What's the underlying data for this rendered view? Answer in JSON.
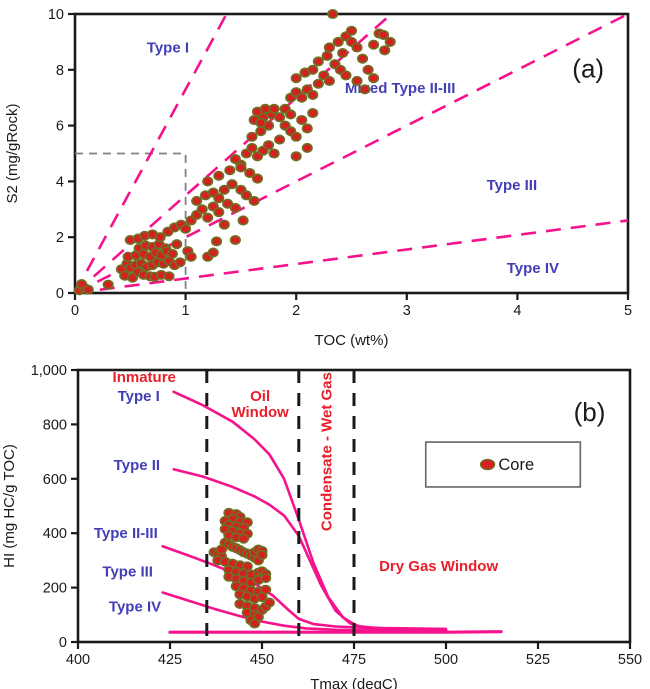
{
  "colors": {
    "pink": "#F5128C",
    "point_fill": "#D42020",
    "point_stroke": "#6F6F23",
    "blue": "#4340B5",
    "red": "#E8202B",
    "black": "#1A1A1A",
    "gray_dash": "#808080",
    "legend_border": "#666666"
  },
  "chart_data": [
    {
      "id": "a",
      "type": "scatter",
      "corner_label": "(a)",
      "xlabel": "TOC (wt%)",
      "ylabel": "S2 (mg/gRock)",
      "xlim": [
        0,
        5
      ],
      "ylim": [
        0,
        10
      ],
      "xticks": [
        0,
        1,
        2,
        3,
        4,
        5
      ],
      "xtick_labels": [
        "0",
        "1",
        "2",
        "3",
        "4",
        "5"
      ],
      "yticks": [
        0,
        2,
        4,
        6,
        8,
        10
      ],
      "ytick_labels": [
        "0",
        "2",
        "4",
        "6",
        "8",
        "10"
      ],
      "grid": false,
      "boundary_lines": [
        {
          "name": "type-1-boundary",
          "from": [
            0,
            0
          ],
          "to": [
            1.37,
            10
          ]
        },
        {
          "name": "type-2-boundary",
          "from": [
            0,
            0
          ],
          "to": [
            2.86,
            10
          ]
        },
        {
          "name": "type-3-boundary",
          "from": [
            0,
            0
          ],
          "to": [
            5,
            10
          ]
        },
        {
          "name": "type-4-boundary",
          "from": [
            0,
            0
          ],
          "to": [
            5,
            2.6
          ]
        }
      ],
      "ref_box": {
        "x": 1,
        "y": 5
      },
      "labels": [
        {
          "text": "Type I",
          "x": 0.84,
          "y": 8.8,
          "color": "blue",
          "bold": true
        },
        {
          "text": "Mixed Type II-III",
          "x": 2.94,
          "y": 7.35,
          "color": "blue",
          "bold": true
        },
        {
          "text": "Type III",
          "x": 3.95,
          "y": 3.87,
          "color": "blue",
          "bold": true
        },
        {
          "text": "Type IV",
          "x": 4.14,
          "y": 0.9,
          "color": "blue",
          "bold": true
        },
        {
          "text": "(a)",
          "x": 4.64,
          "y": 7.9,
          "color": "black",
          "size": 26
        }
      ],
      "points": [
        [
          0.04,
          0.1
        ],
        [
          0.08,
          0.2
        ],
        [
          0.12,
          0.12
        ],
        [
          0.06,
          0.32
        ],
        [
          0.3,
          0.3
        ],
        [
          0.42,
          0.85
        ],
        [
          0.45,
          0.62
        ],
        [
          0.47,
          1.05
        ],
        [
          0.48,
          1.3
        ],
        [
          0.5,
          0.9
        ],
        [
          0.5,
          1.9
        ],
        [
          0.52,
          0.55
        ],
        [
          0.55,
          1.0
        ],
        [
          0.55,
          1.35
        ],
        [
          0.57,
          0.75
        ],
        [
          0.57,
          1.95
        ],
        [
          0.58,
          1.6
        ],
        [
          0.6,
          1.05
        ],
        [
          0.62,
          0.65
        ],
        [
          0.62,
          1.4
        ],
        [
          0.63,
          2.05
        ],
        [
          0.64,
          1.7
        ],
        [
          0.65,
          0.95
        ],
        [
          0.68,
          0.6
        ],
        [
          0.68,
          1.3
        ],
        [
          0.7,
          1.0
        ],
        [
          0.7,
          1.65
        ],
        [
          0.7,
          2.1
        ],
        [
          0.72,
          0.58
        ],
        [
          0.73,
          1.45
        ],
        [
          0.75,
          1.1
        ],
        [
          0.76,
          1.75
        ],
        [
          0.77,
          2.0
        ],
        [
          0.78,
          0.65
        ],
        [
          0.78,
          1.35
        ],
        [
          0.8,
          1.05
        ],
        [
          0.82,
          1.6
        ],
        [
          0.83,
          1.5
        ],
        [
          0.84,
          2.2
        ],
        [
          0.85,
          0.6
        ],
        [
          0.85,
          1.15
        ],
        [
          0.88,
          1.4
        ],
        [
          0.9,
          1.0
        ],
        [
          0.9,
          2.35
        ],
        [
          0.92,
          1.75
        ],
        [
          0.95,
          1.1
        ],
        [
          0.96,
          2.45
        ],
        [
          1.0,
          2.3
        ],
        [
          1.02,
          1.5
        ],
        [
          1.05,
          1.3
        ],
        [
          1.05,
          2.6
        ],
        [
          1.1,
          2.8
        ],
        [
          1.15,
          3.0
        ],
        [
          1.2,
          2.7
        ],
        [
          1.25,
          3.1
        ],
        [
          1.3,
          2.9
        ],
        [
          1.1,
          3.3
        ],
        [
          1.18,
          3.5
        ],
        [
          1.25,
          3.6
        ],
        [
          1.3,
          3.4
        ],
        [
          1.38,
          3.2
        ],
        [
          1.45,
          3.05
        ],
        [
          1.35,
          3.7
        ],
        [
          1.42,
          3.9
        ],
        [
          1.5,
          3.7
        ],
        [
          1.55,
          3.5
        ],
        [
          1.62,
          3.3
        ],
        [
          1.2,
          4.0
        ],
        [
          1.3,
          4.2
        ],
        [
          1.4,
          4.4
        ],
        [
          1.5,
          4.6
        ],
        [
          1.58,
          4.3
        ],
        [
          1.65,
          4.1
        ],
        [
          1.35,
          2.45
        ],
        [
          1.52,
          2.6
        ],
        [
          1.28,
          1.85
        ],
        [
          1.45,
          1.9
        ],
        [
          1.2,
          1.3
        ],
        [
          1.25,
          1.45
        ],
        [
          1.45,
          4.8
        ],
        [
          1.5,
          4.5
        ],
        [
          1.55,
          5.0
        ],
        [
          1.6,
          5.2
        ],
        [
          1.65,
          4.9
        ],
        [
          1.7,
          5.1
        ],
        [
          1.75,
          5.3
        ],
        [
          1.8,
          5.0
        ],
        [
          1.6,
          5.6
        ],
        [
          1.68,
          5.8
        ],
        [
          1.75,
          6.0
        ],
        [
          1.62,
          6.2
        ],
        [
          1.7,
          6.3
        ],
        [
          1.78,
          6.4
        ],
        [
          1.65,
          6.5
        ],
        [
          1.72,
          6.6
        ],
        [
          1.8,
          6.6
        ],
        [
          1.68,
          6.1
        ],
        [
          1.85,
          6.3
        ],
        [
          1.9,
          6.0
        ],
        [
          1.95,
          5.8
        ],
        [
          2.0,
          5.6
        ],
        [
          1.9,
          6.6
        ],
        [
          1.95,
          6.4
        ],
        [
          2.05,
          6.2
        ],
        [
          2.1,
          5.9
        ],
        [
          2.0,
          4.9
        ],
        [
          2.1,
          5.2
        ],
        [
          1.85,
          5.5
        ],
        [
          2.15,
          6.45
        ],
        [
          1.95,
          7.0
        ],
        [
          2.0,
          7.2
        ],
        [
          2.05,
          7.0
        ],
        [
          2.1,
          7.3
        ],
        [
          2.15,
          7.1
        ],
        [
          2.2,
          7.5
        ],
        [
          2.0,
          7.7
        ],
        [
          2.08,
          7.9
        ],
        [
          2.15,
          8.0
        ],
        [
          2.25,
          7.8
        ],
        [
          2.3,
          7.6
        ],
        [
          2.2,
          8.3
        ],
        [
          2.28,
          8.5
        ],
        [
          2.35,
          8.2
        ],
        [
          2.4,
          8.0
        ],
        [
          2.45,
          7.8
        ],
        [
          2.3,
          8.8
        ],
        [
          2.38,
          9.0
        ],
        [
          2.45,
          9.2
        ],
        [
          2.5,
          9.0
        ],
        [
          2.55,
          8.8
        ],
        [
          2.33,
          10.0
        ],
        [
          2.5,
          9.4
        ],
        [
          2.42,
          8.6
        ],
        [
          2.6,
          8.4
        ],
        [
          2.65,
          8.0
        ],
        [
          2.55,
          7.6
        ],
        [
          2.62,
          7.3
        ],
        [
          2.7,
          8.9
        ],
        [
          2.75,
          9.3
        ],
        [
          2.8,
          8.7
        ],
        [
          2.85,
          9.0
        ],
        [
          2.7,
          7.7
        ],
        [
          2.79,
          9.25
        ]
      ]
    },
    {
      "id": "b",
      "type": "line",
      "corner_label": "(b)",
      "xlabel": "Tmax (degC)",
      "ylabel": "HI (mg HC/g TOC)",
      "xlim": [
        400,
        550
      ],
      "ylim": [
        0,
        1000
      ],
      "xticks": [
        400,
        425,
        450,
        475,
        500,
        525,
        550
      ],
      "xtick_labels": [
        "400",
        "425",
        "450",
        "475",
        "500",
        "525",
        "550"
      ],
      "yticks": [
        0,
        200,
        400,
        600,
        800,
        1000
      ],
      "ytick_labels": [
        "0",
        "200",
        "400",
        "600",
        "800",
        "1,000"
      ],
      "grid": false,
      "vlines": [
        435,
        460,
        475
      ],
      "curves": [
        {
          "name": "Type I maturity curve",
          "points": [
            [
              426,
              920
            ],
            [
              434,
              870
            ],
            [
              442,
              810
            ],
            [
              448,
              745
            ],
            [
              452,
              690
            ],
            [
              456,
              600
            ],
            [
              460,
              450
            ],
            [
              464,
              290
            ],
            [
              468,
              165
            ],
            [
              472,
              90
            ],
            [
              476,
              58
            ],
            [
              484,
              48
            ],
            [
              500,
              45
            ]
          ]
        },
        {
          "name": "Type II maturity curve",
          "points": [
            [
              426,
              635
            ],
            [
              434,
              608
            ],
            [
              442,
              570
            ],
            [
              448,
              535
            ],
            [
              452,
              505
            ],
            [
              456,
              465
            ],
            [
              460,
              390
            ],
            [
              463,
              300
            ],
            [
              466,
              210
            ],
            [
              470,
              115
            ],
            [
              474,
              68
            ],
            [
              478,
              52
            ],
            [
              486,
              46
            ],
            [
              500,
              43
            ]
          ]
        },
        {
          "name": "Type II-III maturity curve",
          "points": [
            [
              423,
              352
            ],
            [
              430,
              318
            ],
            [
              436,
              288
            ],
            [
              442,
              255
            ],
            [
              448,
              215
            ],
            [
              453,
              170
            ],
            [
              457,
              120
            ],
            [
              460,
              85
            ],
            [
              464,
              66
            ],
            [
              470,
              57
            ],
            [
              478,
              52
            ],
            [
              490,
              50
            ],
            [
              500,
              48
            ]
          ]
        },
        {
          "name": "Type III maturity curve",
          "points": [
            [
              423,
              182
            ],
            [
              430,
              152
            ],
            [
              437,
              122
            ],
            [
              444,
              95
            ],
            [
              450,
              75
            ],
            [
              456,
              60
            ],
            [
              462,
              50
            ],
            [
              470,
              45
            ],
            [
              480,
              42
            ],
            [
              500,
              40
            ]
          ]
        },
        {
          "name": "Type IV maturity curve",
          "points": [
            [
              425,
              36
            ],
            [
              500,
              36
            ],
            [
              515,
              38
            ]
          ],
          "width": 3.2
        }
      ],
      "labels": [
        {
          "text": "Inmature",
          "x": 418,
          "y": 975,
          "color": "red",
          "bold": true
        },
        {
          "text": "Type I",
          "x": 416.5,
          "y": 905,
          "color": "blue",
          "bold": true
        },
        {
          "text": "Oil\nWindow",
          "x": 449.5,
          "y": 905,
          "color": "red",
          "bold": true
        },
        {
          "text": "Type II",
          "x": 416,
          "y": 650,
          "color": "blue",
          "bold": true
        },
        {
          "text": "Type II-III",
          "x": 413,
          "y": 400,
          "color": "blue",
          "bold": true
        },
        {
          "text": "Type III",
          "x": 413.5,
          "y": 260,
          "color": "blue",
          "bold": true
        },
        {
          "text": "Type IV",
          "x": 415.5,
          "y": 130,
          "color": "blue",
          "bold": true
        },
        {
          "text": "Condensate - Wet Gas",
          "x": 467.5,
          "y": 700,
          "color": "red",
          "bold": true,
          "rotate": -90
        },
        {
          "text": "Dry Gas Window",
          "x": 498,
          "y": 280,
          "color": "red",
          "bold": true
        },
        {
          "text": "(b)",
          "x": 539,
          "y": 830,
          "color": "black",
          "size": 26
        }
      ],
      "legend": {
        "label": "Core",
        "x": [
          494.5,
          536.5
        ],
        "y": [
          570,
          735
        ]
      },
      "points": [
        [
          441,
          475
        ],
        [
          443,
          470
        ],
        [
          444,
          460
        ],
        [
          442,
          452
        ],
        [
          440,
          445
        ],
        [
          444,
          443
        ],
        [
          446,
          440
        ],
        [
          441,
          430
        ],
        [
          443,
          425
        ],
        [
          445,
          420
        ],
        [
          440,
          415
        ],
        [
          442,
          408
        ],
        [
          444,
          400
        ],
        [
          446,
          398
        ],
        [
          441,
          392
        ],
        [
          443,
          385
        ],
        [
          445,
          380
        ],
        [
          437,
          330
        ],
        [
          438,
          322
        ],
        [
          439,
          315
        ],
        [
          440,
          365
        ],
        [
          441,
          358
        ],
        [
          442,
          350
        ],
        [
          443,
          345
        ],
        [
          444,
          338
        ],
        [
          445,
          330
        ],
        [
          446,
          325
        ],
        [
          447,
          318
        ],
        [
          448,
          310
        ],
        [
          449,
          300
        ],
        [
          438,
          300
        ],
        [
          440,
          295
        ],
        [
          442,
          288
        ],
        [
          444,
          282
        ],
        [
          446,
          278
        ],
        [
          448,
          330
        ],
        [
          449,
          340
        ],
        [
          450,
          335
        ],
        [
          450,
          320
        ],
        [
          439,
          340
        ],
        [
          441,
          265
        ],
        [
          443,
          258
        ],
        [
          445,
          252
        ],
        [
          447,
          248
        ],
        [
          449,
          255
        ],
        [
          450,
          260
        ],
        [
          451,
          250
        ],
        [
          441,
          240
        ],
        [
          443,
          232
        ],
        [
          445,
          225
        ],
        [
          447,
          218
        ],
        [
          449,
          228
        ],
        [
          451,
          235
        ],
        [
          443,
          205
        ],
        [
          445,
          198
        ],
        [
          447,
          190
        ],
        [
          449,
          185
        ],
        [
          451,
          192
        ],
        [
          444,
          175
        ],
        [
          446,
          168
        ],
        [
          448,
          160
        ],
        [
          450,
          165
        ],
        [
          444,
          140
        ],
        [
          446,
          132
        ],
        [
          448,
          125
        ],
        [
          450,
          118
        ],
        [
          446,
          108
        ],
        [
          448,
          100
        ],
        [
          449,
          92
        ],
        [
          447,
          80
        ],
        [
          448,
          68
        ],
        [
          451,
          130
        ],
        [
          452,
          145
        ]
      ]
    }
  ]
}
